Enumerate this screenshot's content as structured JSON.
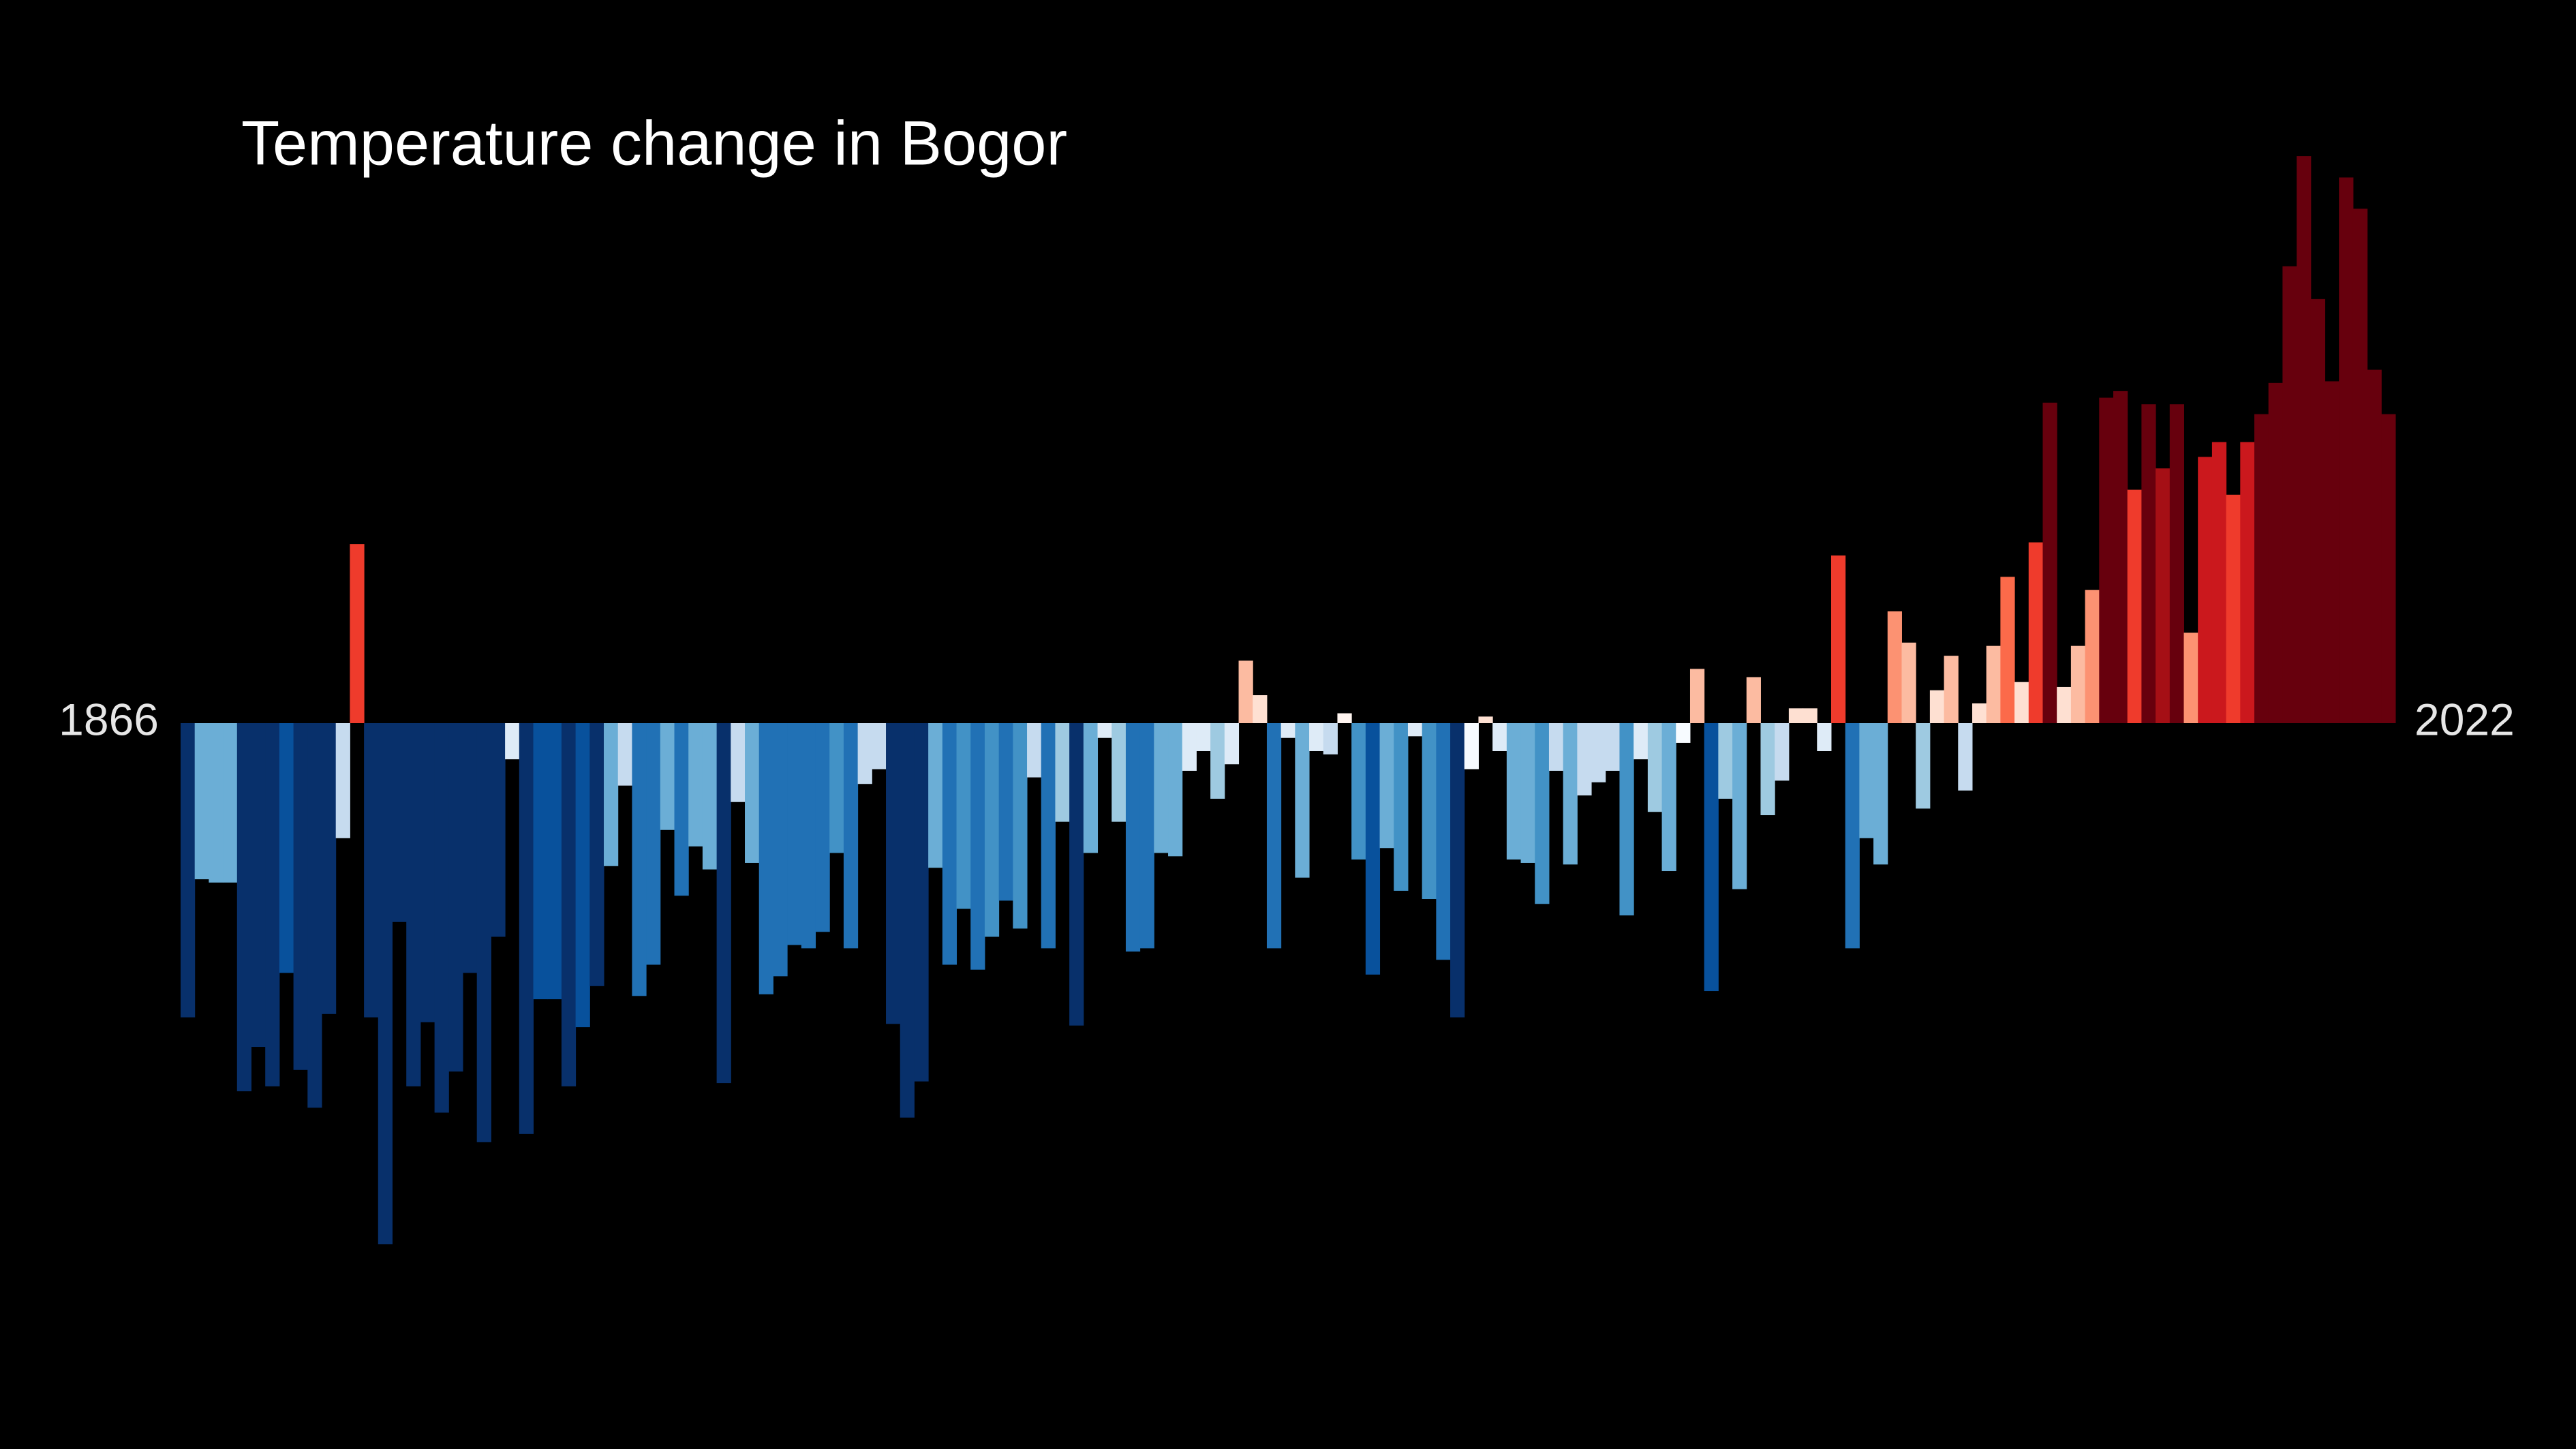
{
  "chart_data": {
    "type": "bar",
    "title": "Temperature change in Bogor",
    "categories": [
      "1866",
      null,
      null,
      null,
      null,
      null,
      null,
      null,
      null,
      null,
      null,
      null,
      null,
      null,
      null,
      null,
      null,
      null,
      null,
      null,
      null,
      null,
      null,
      null,
      null,
      null,
      null,
      null,
      null,
      null,
      null,
      null,
      null,
      null,
      null,
      null,
      null,
      null,
      null,
      null,
      null,
      null,
      null,
      null,
      null,
      null,
      null,
      null,
      null,
      null,
      null,
      null,
      null,
      null,
      null,
      null,
      null,
      null,
      null,
      null,
      null,
      null,
      null,
      null,
      null,
      null,
      null,
      null,
      null,
      null,
      null,
      null,
      null,
      null,
      null,
      null,
      null,
      null,
      null,
      null,
      null,
      null,
      null,
      null,
      null,
      null,
      null,
      null,
      null,
      null,
      null,
      null,
      null,
      null,
      null,
      null,
      null,
      null,
      null,
      null,
      null,
      null,
      null,
      null,
      null,
      null,
      null,
      null,
      null,
      null,
      null,
      null,
      null,
      null,
      null,
      null,
      null,
      null,
      null,
      null,
      null,
      null,
      null,
      null,
      null,
      null,
      null,
      null,
      null,
      null,
      null,
      null,
      null,
      null,
      null,
      null,
      null,
      null,
      null,
      null,
      null,
      null,
      null,
      null,
      null,
      null,
      null,
      null,
      null,
      null,
      null,
      null,
      null,
      null,
      null,
      null,
      "2022"
    ],
    "values": [
      -1.79,
      -0.95,
      -0.97,
      -0.97,
      -2.24,
      -1.97,
      -2.21,
      -1.52,
      -2.11,
      -2.34,
      -1.77,
      -0.7,
      1.09,
      -1.79,
      -3.17,
      -1.21,
      -2.21,
      -1.82,
      -2.37,
      -2.12,
      -1.52,
      -2.55,
      -1.3,
      -0.22,
      -2.5,
      -1.68,
      -1.68,
      -2.21,
      -1.85,
      -1.6,
      -0.87,
      -0.38,
      -1.66,
      -1.47,
      -0.65,
      -1.05,
      -0.75,
      -0.89,
      -2.19,
      -0.48,
      -0.85,
      -1.65,
      -1.54,
      -1.35,
      -1.37,
      -1.27,
      -0.79,
      -1.37,
      -0.37,
      -0.28,
      -1.83,
      -2.4,
      -2.18,
      -0.88,
      -1.47,
      -1.13,
      -1.5,
      -1.3,
      -1.08,
      -1.25,
      -0.33,
      -1.37,
      -0.6,
      -1.84,
      -0.79,
      -0.09,
      -0.6,
      -1.39,
      -1.37,
      -0.79,
      -0.81,
      -0.29,
      -0.17,
      -0.46,
      -0.25,
      0.38,
      0.17,
      -1.37,
      -0.09,
      -0.94,
      -0.17,
      -0.19,
      0.06,
      -0.83,
      -1.53,
      -0.76,
      -1.02,
      -0.08,
      -1.07,
      -1.44,
      -1.79,
      -0.28,
      0.04,
      -0.17,
      -0.83,
      -0.85,
      -1.1,
      -0.29,
      -0.86,
      -0.44,
      -0.36,
      -0.29,
      -1.17,
      -0.22,
      -0.54,
      -0.9,
      -0.12,
      0.33,
      -1.63,
      -0.46,
      -1.01,
      0.28,
      -0.56,
      -0.35,
      0.09,
      0.09,
      -0.17,
      1.02,
      -1.37,
      -0.7,
      -0.86,
      0.68,
      0.49,
      -0.52,
      0.2,
      0.41,
      -0.41,
      0.12,
      0.47,
      0.89,
      0.25,
      1.1,
      1.95,
      0.22,
      0.47,
      0.81,
      1.98,
      2.02,
      1.42,
      1.94,
      1.55,
      1.94,
      0.55,
      1.62,
      1.71,
      1.39,
      1.71,
      1.88,
      2.07,
      2.78,
      3.45,
      2.58,
      2.08,
      3.32,
      3.13,
      2.15,
      1.88
    ],
    "colors": [
      "#08306b",
      "#6baed6",
      "#6baed6",
      "#6baed6",
      "#08306b",
      "#08306b",
      "#08306b",
      "#08519c",
      "#08306b",
      "#08306b",
      "#08306b",
      "#c6dbef",
      "#ef3b2c",
      "#08306b",
      "#08306b",
      "#08306b",
      "#08306b",
      "#08306b",
      "#08306b",
      "#08306b",
      "#08306b",
      "#08306b",
      "#08306b",
      "#deebf7",
      "#08306b",
      "#08519c",
      "#08519c",
      "#08306b",
      "#08519c",
      "#08306b",
      "#6baed6",
      "#c6dbef",
      "#2171b5",
      "#2171b5",
      "#6baed6",
      "#2171b5",
      "#6baed6",
      "#6baed6",
      "#08306b",
      "#c6dbef",
      "#6baed6",
      "#2171b5",
      "#2171b5",
      "#2171b5",
      "#2171b5",
      "#2171b5",
      "#4292c6",
      "#2171b5",
      "#c6dbef",
      "#c6dbef",
      "#08306b",
      "#08306b",
      "#08306b",
      "#6baed6",
      "#2171b5",
      "#4292c6",
      "#2171b5",
      "#4292c6",
      "#2171b5",
      "#4292c6",
      "#c6dbef",
      "#2171b5",
      "#9ecae1",
      "#08306b",
      "#6baed6",
      "#deebf7",
      "#9ecae1",
      "#2171b5",
      "#2171b5",
      "#6baed6",
      "#6baed6",
      "#deebf7",
      "#deebf7",
      "#9ecae1",
      "#deebf7",
      "#fcbba1",
      "#fee0d2",
      "#2171b5",
      "#deebf7",
      "#6baed6",
      "#deebf7",
      "#c6dbef",
      "#fff5f0",
      "#4292c6",
      "#08519c",
      "#6baed6",
      "#4292c6",
      "#deebf7",
      "#4292c6",
      "#2171b5",
      "#08306b",
      "#f7fbff",
      "#fee0d2",
      "#deebf7",
      "#6baed6",
      "#6baed6",
      "#4292c6",
      "#c6dbef",
      "#6baed6",
      "#c6dbef",
      "#c6dbef",
      "#c6dbef",
      "#4292c6",
      "#deebf7",
      "#9ecae1",
      "#6baed6",
      "#f7fbff",
      "#fcbba1",
      "#08519c",
      "#9ecae1",
      "#6baed6",
      "#fcbba1",
      "#9ecae1",
      "#c6dbef",
      "#fee0d2",
      "#fee0d2",
      "#deebf7",
      "#ef3b2c",
      "#2171b5",
      "#6baed6",
      "#6baed6",
      "#fc9272",
      "#fcbba1",
      "#9ecae1",
      "#fee0d2",
      "#fcbba1",
      "#c6dbef",
      "#fee0d2",
      "#fcbba1",
      "#fb6a4a",
      "#fee0d2",
      "#ef3b2c",
      "#67000d",
      "#fee0d2",
      "#fcbba1",
      "#fc9272",
      "#67000d",
      "#67000d",
      "#ef3b2c",
      "#67000d",
      "#a50f15",
      "#67000d",
      "#fc9272",
      "#cb181d",
      "#cb181d",
      "#ef3b2c",
      "#cb181d",
      "#67000d",
      "#67000d",
      "#67000d",
      "#67000d",
      "#67000d",
      "#67000d",
      "#67000d",
      "#67000d",
      "#67000d",
      "#67000d"
    ],
    "ylim": [
      -4.4,
      4.4
    ]
  }
}
